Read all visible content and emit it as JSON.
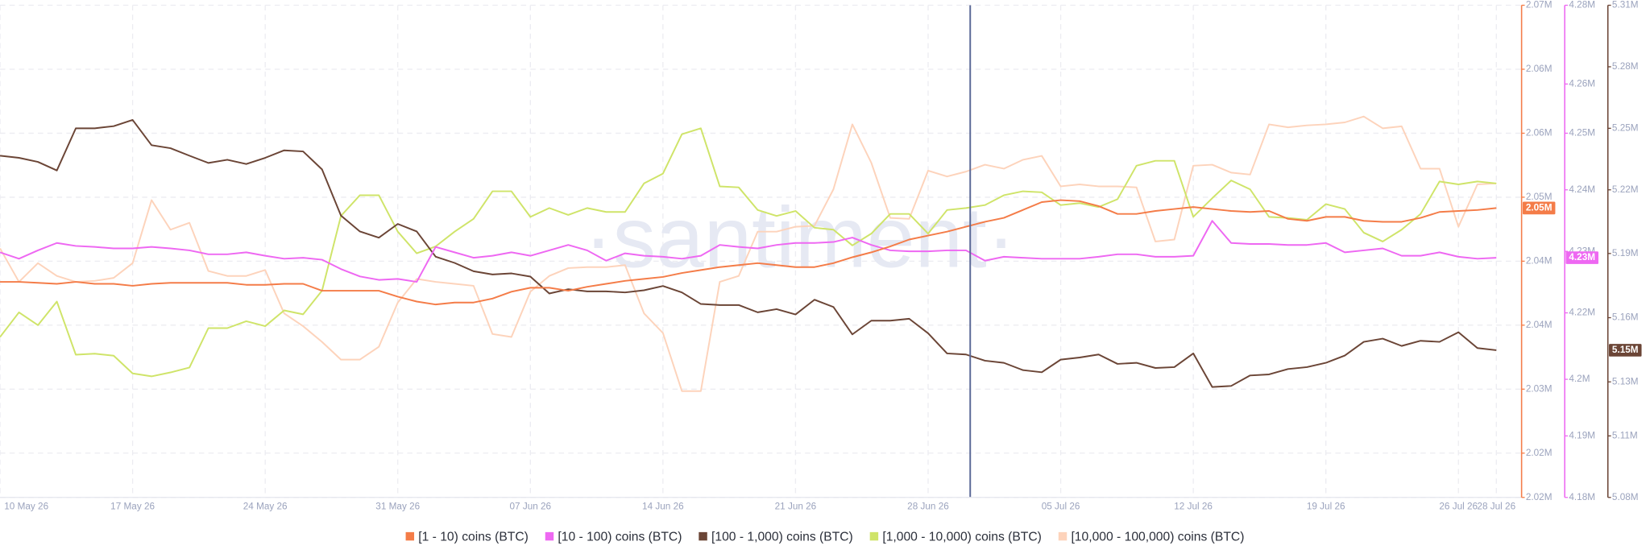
{
  "chart_data": {
    "type": "line",
    "watermark": "·santiment·",
    "categories": [
      "10 May 26",
      null,
      null,
      null,
      null,
      null,
      null,
      "17 May 26",
      null,
      null,
      null,
      null,
      null,
      null,
      "24 May 26",
      null,
      null,
      null,
      null,
      null,
      null,
      "31 May 26",
      null,
      null,
      null,
      null,
      null,
      null,
      "07 Jun 26",
      null,
      null,
      null,
      null,
      null,
      null,
      "14 Jun 26",
      null,
      null,
      null,
      null,
      null,
      null,
      "21 Jun 26",
      null,
      null,
      null,
      null,
      null,
      null,
      "28 Jun 26",
      null,
      null,
      null,
      null,
      null,
      null,
      "05 Jul 26",
      null,
      null,
      null,
      null,
      null,
      null,
      "12 Jul 26",
      null,
      null,
      null,
      null,
      null,
      null,
      "19 Jul 26",
      null,
      null,
      null,
      null,
      null,
      null,
      "26 Jul 26",
      null,
      "28 Jul 26"
    ],
    "ylim": [
      2020000,
      2070000
    ],
    "yticks": [
      {
        "value": 2020000,
        "label": "2.02M"
      },
      {
        "value": 2024500,
        "label": "2.02M"
      },
      {
        "value": 2031000,
        "label": "2.03M"
      },
      {
        "value": 2037500,
        "label": "2.04M"
      },
      {
        "value": 2044000,
        "label": "2.04M"
      },
      {
        "value": 2050500,
        "label": "2.05M"
      },
      {
        "value": 2057000,
        "label": "2.06M"
      },
      {
        "value": 2063500,
        "label": "2.06M"
      },
      {
        "value": 2070000,
        "label": "2.07M"
      }
    ],
    "y2lim": [
      4180000,
      4280000
    ],
    "y2ticks": [
      {
        "value": 4180000,
        "label": "4.18M"
      },
      {
        "value": 4192500,
        "label": "4.19M"
      },
      {
        "value": 4204000,
        "label": "4.2M"
      },
      {
        "value": 4217500,
        "label": "4.22M"
      },
      {
        "value": 4230000,
        "label": "4.23M"
      },
      {
        "value": 4242500,
        "label": "4.24M"
      },
      {
        "value": 4254000,
        "label": "4.25M"
      },
      {
        "value": 4264000,
        "label": "4.26M"
      },
      {
        "value": 4280000,
        "label": "4.28M"
      }
    ],
    "y3lim": [
      5080000,
      5310000
    ],
    "y3ticks": [
      {
        "value": 5080000,
        "label": "5.08M"
      },
      {
        "value": 5108750,
        "label": "5.11M"
      },
      {
        "value": 5134000,
        "label": "5.13M"
      },
      {
        "value": 5164000,
        "label": "5.16M"
      },
      {
        "value": 5194000,
        "label": "5.19M"
      },
      {
        "value": 5223750,
        "label": "5.22M"
      },
      {
        "value": 5252500,
        "label": "5.25M"
      },
      {
        "value": 5281250,
        "label": "5.28M"
      },
      {
        "value": 5310000,
        "label": "5.31M"
      }
    ],
    "grid": true,
    "legend": "bottom",
    "series": [
      {
        "name": "[1 - 10) coins (BTC)",
        "color": "#f47c48",
        "axis": "y",
        "current_label": "2.05M",
        "values": [
          2041900,
          2041900,
          2041800,
          2041700,
          2041900,
          2041700,
          2041700,
          2041500,
          2041700,
          2041800,
          2041800,
          2041800,
          2041800,
          2041600,
          2041600,
          2041700,
          2041700,
          2041000,
          2041000,
          2041000,
          2041000,
          2040400,
          2039900,
          2039600,
          2039800,
          2039800,
          2040200,
          2040900,
          2041300,
          2041300,
          2041000,
          2041400,
          2041700,
          2042000,
          2042200,
          2042400,
          2042800,
          2043100,
          2043400,
          2043600,
          2043800,
          2043600,
          2043400,
          2043400,
          2043800,
          2044400,
          2044900,
          2045500,
          2046200,
          2046600,
          2047000,
          2047500,
          2048000,
          2048400,
          2049200,
          2050000,
          2050200,
          2050100,
          2049600,
          2048800,
          2048800,
          2049100,
          2049300,
          2049500,
          2049300,
          2049100,
          2049000,
          2049100,
          2048300,
          2048100,
          2048500,
          2048500,
          2048100,
          2048000,
          2048000,
          2048400,
          2049000,
          2049100,
          2049200,
          2049400
        ]
      },
      {
        "name": "[10 - 100) coins (BTC)",
        "color": "#ee68f2",
        "axis": "y2",
        "current_label": "4.23M",
        "values": [
          4229800,
          4228500,
          4230200,
          4231700,
          4231100,
          4230900,
          4230600,
          4230600,
          4230900,
          4230600,
          4230200,
          4229400,
          4229400,
          4229800,
          4229100,
          4228500,
          4228700,
          4228300,
          4226400,
          4224900,
          4224200,
          4224400,
          4223800,
          4230900,
          4229800,
          4228700,
          4229100,
          4229800,
          4229100,
          4230200,
          4231300,
          4230200,
          4228100,
          4229600,
          4229100,
          4228900,
          4228500,
          4229100,
          4231300,
          4230900,
          4230600,
          4231300,
          4231700,
          4231700,
          4231900,
          4232800,
          4231300,
          4230200,
          4230000,
          4230000,
          4230200,
          4230200,
          4228100,
          4228900,
          4228700,
          4228500,
          4228500,
          4228500,
          4228900,
          4229400,
          4229400,
          4228900,
          4228900,
          4229100,
          4236200,
          4231700,
          4231500,
          4231500,
          4231300,
          4231300,
          4231700,
          4229800,
          4230200,
          4230600,
          4229100,
          4229100,
          4229800,
          4228900,
          4228500,
          4228700
        ]
      },
      {
        "name": "[100 - 1,000) coins (BTC)",
        "color": "#6b4536",
        "axis": "y3",
        "current_label": "5.15M",
        "values": [
          5239700,
          5238700,
          5236800,
          5232800,
          5252500,
          5252500,
          5253500,
          5256400,
          5244600,
          5243200,
          5239700,
          5236300,
          5237800,
          5235800,
          5238700,
          5242200,
          5241700,
          5233300,
          5211700,
          5204300,
          5201400,
          5207800,
          5204300,
          5192500,
          5189600,
          5185700,
          5184200,
          5184700,
          5183200,
          5175300,
          5177300,
          5176300,
          5176300,
          5175800,
          5176800,
          5178800,
          5175800,
          5170400,
          5169900,
          5169900,
          5166500,
          5168000,
          5165500,
          5172400,
          5169000,
          5156200,
          5162600,
          5162600,
          5163500,
          5156700,
          5147300,
          5146800,
          5143900,
          5142900,
          5139500,
          5138500,
          5144400,
          5145400,
          5146800,
          5142400,
          5142900,
          5140500,
          5140900,
          5147300,
          5131600,
          5132100,
          5137000,
          5137500,
          5140000,
          5140900,
          5142900,
          5146300,
          5152700,
          5154200,
          5150800,
          5153200,
          5152700,
          5157200,
          5149800,
          5148800
        ]
      },
      {
        "name": "[1,000 - 10,000) coins (BTC)",
        "color": "#cfe469",
        "axis": "y",
        "values": [
          2036300,
          2038800,
          2037500,
          2039900,
          2034500,
          2034600,
          2034400,
          2032600,
          2032300,
          2032700,
          2033200,
          2037200,
          2037200,
          2037900,
          2037400,
          2039000,
          2038600,
          2041000,
          2048600,
          2050700,
          2050700,
          2047000,
          2044800,
          2045500,
          2047000,
          2048300,
          2051100,
          2051100,
          2048500,
          2049400,
          2048700,
          2049400,
          2049000,
          2049000,
          2051900,
          2052900,
          2056900,
          2057500,
          2051600,
          2051500,
          2049200,
          2048600,
          2049100,
          2047400,
          2047200,
          2045600,
          2046800,
          2048800,
          2048800,
          2046800,
          2049200,
          2049400,
          2049700,
          2050700,
          2051100,
          2051000,
          2049700,
          2049900,
          2049500,
          2050300,
          2053700,
          2054200,
          2054200,
          2048500,
          2050400,
          2052200,
          2051300,
          2048500,
          2048400,
          2048200,
          2049800,
          2049300,
          2046900,
          2046000,
          2047200,
          2048800,
          2052100,
          2051800,
          2052100,
          2051900
        ]
      },
      {
        "name": "[10,000 - 100,000) coins (BTC)",
        "color": "#fdd3bb",
        "axis": "y",
        "values": [
          2045300,
          2041900,
          2043800,
          2042500,
          2041900,
          2042000,
          2042300,
          2043800,
          2050200,
          2047200,
          2047900,
          2043000,
          2042500,
          2042500,
          2043100,
          2038700,
          2037400,
          2035800,
          2034000,
          2034000,
          2035300,
          2039800,
          2042200,
          2041900,
          2041700,
          2041500,
          2036600,
          2036300,
          2040900,
          2042500,
          2043300,
          2043400,
          2043400,
          2043600,
          2038700,
          2036700,
          2030800,
          2030800,
          2041900,
          2042500,
          2047000,
          2047000,
          2047500,
          2047600,
          2051300,
          2057900,
          2054000,
          2048400,
          2048300,
          2053200,
          2052600,
          2053100,
          2053800,
          2053400,
          2054300,
          2054700,
          2051600,
          2051800,
          2051600,
          2051600,
          2051500,
          2046000,
          2046200,
          2053700,
          2053800,
          2053000,
          2052800,
          2057900,
          2057600,
          2057800,
          2057900,
          2058100,
          2058700,
          2057500,
          2057700,
          2053400,
          2053400,
          2047500,
          2051800,
          2051900
        ]
      }
    ]
  }
}
